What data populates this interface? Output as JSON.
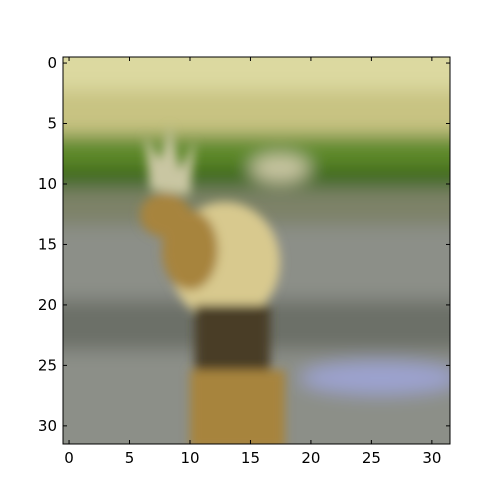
{
  "image": {
    "subject": "blurry low-resolution photo of an elk standing in water",
    "grid_size": 32
  },
  "axes": {
    "x_ticks": [
      "0",
      "5",
      "10",
      "15",
      "20",
      "25",
      "30"
    ],
    "y_ticks": [
      "0",
      "5",
      "10",
      "15",
      "20",
      "25",
      "30"
    ],
    "xlim": [
      -0.5,
      31.5
    ],
    "ylim": [
      31.5,
      -0.5
    ],
    "grid": false,
    "frame_color": "#000000"
  },
  "colors": {
    "meadow_light": "#dcd9a0",
    "meadow_mid": "#c8c382",
    "grass_band": "#5f8a2a",
    "grass_dark": "#3f6a1c",
    "shore": "#7d8268",
    "water": "#8c8f88",
    "water_dark": "#6c6f68",
    "water_highlight": "#9ca3d0",
    "elk_body": "#d8c98e",
    "elk_shadow": "#a7843c",
    "elk_legs": "#4a3e28",
    "antler": "#c9c6a2"
  }
}
